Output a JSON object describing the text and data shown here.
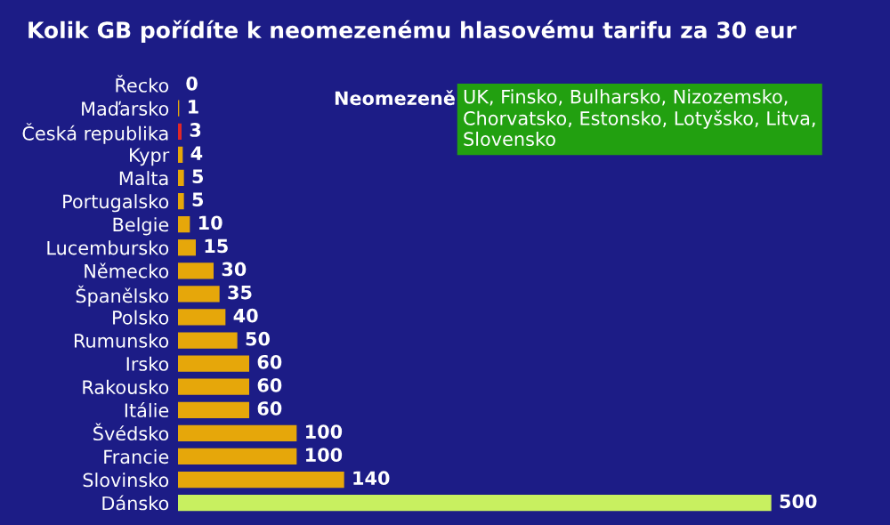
{
  "chart_data": {
    "type": "bar",
    "orientation": "horizontal",
    "title": "Kolik GB pořídíte k neomezenému hlasovému tarifu za 30 eur",
    "categories": [
      "Řecko",
      "Maďarsko",
      "Česká republika",
      "Kypr",
      "Malta",
      "Portugalsko",
      "Belgie",
      "Lucembursko",
      "Německo",
      "Španělsko",
      "Polsko",
      "Rumunsko",
      "Irsko",
      "Rakousko",
      "Itálie",
      "Švédsko",
      "Francie",
      "Slovinsko",
      "Dánsko"
    ],
    "values": [
      0,
      1,
      3,
      4,
      5,
      5,
      10,
      15,
      30,
      35,
      40,
      50,
      60,
      60,
      60,
      100,
      100,
      140,
      500
    ],
    "colors": [
      "#e6a70a",
      "#e6a70a",
      "#e02828",
      "#e6a70a",
      "#e6a70a",
      "#e6a70a",
      "#e6a70a",
      "#e6a70a",
      "#e6a70a",
      "#e6a70a",
      "#e6a70a",
      "#e6a70a",
      "#e6a70a",
      "#e6a70a",
      "#e6a70a",
      "#e6a70a",
      "#e6a70a",
      "#e6a70a",
      "#c8f060"
    ],
    "data_labels": true,
    "annotations": [
      "Neomezeně",
      "UK, Finsko, Bulharsko, Nizozemsko, Chorvatsko, Estonsko, Lotyšsko, Litva, Slovensko"
    ]
  }
}
